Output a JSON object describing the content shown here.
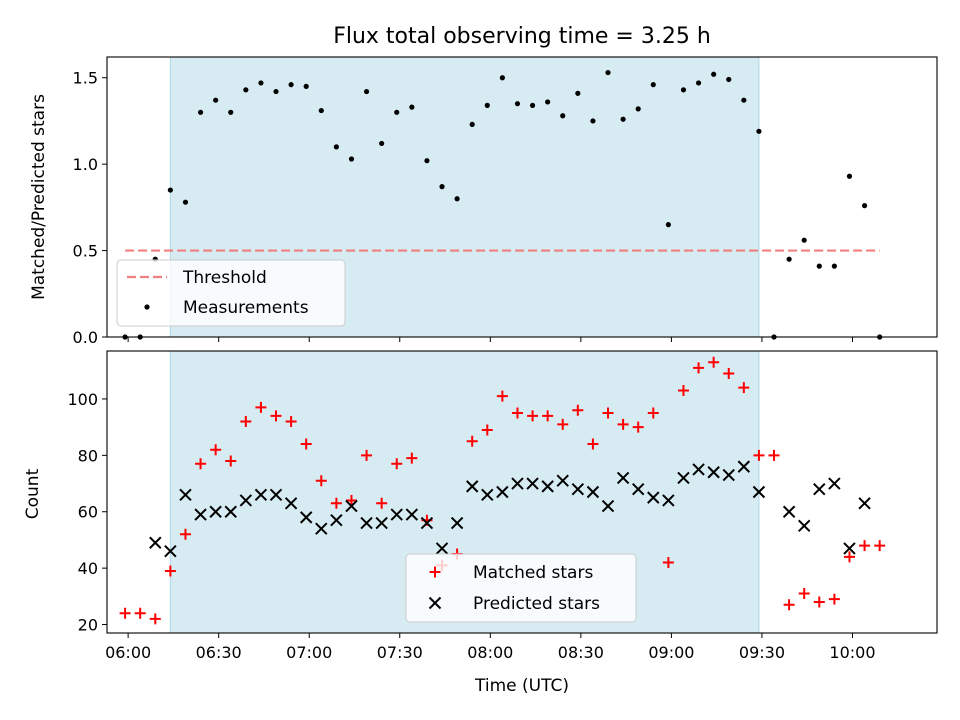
{
  "chart_data": [
    {
      "type": "scatter",
      "title": "Flux total observing time = 3.25 h",
      "xlabel": "",
      "ylabel": "Matched/Predicted stars",
      "ylim": [
        0,
        1.62
      ],
      "xlim": [
        "05:53",
        "10:28"
      ],
      "yticks": [
        "0.0",
        "0.5",
        "1.0",
        "1.5"
      ],
      "shaded_span": [
        "06:14",
        "09:29"
      ],
      "shade_color": "#add8e6",
      "threshold": {
        "name": "Threshold",
        "value": 0.5,
        "x_range": [
          "05:59",
          "10:09"
        ],
        "color": "#f08080"
      },
      "legend": {
        "placement": "lower-left",
        "entries": [
          "Threshold",
          "Measurements"
        ]
      },
      "series": [
        {
          "name": "Measurements",
          "color": "#000000",
          "marker": "dot",
          "points": [
            [
              "05:59",
              0.0
            ],
            [
              "06:04",
              0.0
            ],
            [
              "06:09",
              0.45
            ],
            [
              "06:14",
              0.85
            ],
            [
              "06:19",
              0.78
            ],
            [
              "06:24",
              1.3
            ],
            [
              "06:29",
              1.37
            ],
            [
              "06:34",
              1.3
            ],
            [
              "06:39",
              1.43
            ],
            [
              "06:44",
              1.47
            ],
            [
              "06:49",
              1.42
            ],
            [
              "06:54",
              1.46
            ],
            [
              "06:59",
              1.45
            ],
            [
              "07:04",
              1.31
            ],
            [
              "07:09",
              1.1
            ],
            [
              "07:14",
              1.03
            ],
            [
              "07:19",
              1.42
            ],
            [
              "07:24",
              1.12
            ],
            [
              "07:29",
              1.3
            ],
            [
              "07:34",
              1.33
            ],
            [
              "07:39",
              1.02
            ],
            [
              "07:44",
              0.87
            ],
            [
              "07:49",
              0.8
            ],
            [
              "07:54",
              1.23
            ],
            [
              "07:59",
              1.34
            ],
            [
              "08:04",
              1.5
            ],
            [
              "08:09",
              1.35
            ],
            [
              "08:14",
              1.34
            ],
            [
              "08:19",
              1.36
            ],
            [
              "08:24",
              1.28
            ],
            [
              "08:29",
              1.41
            ],
            [
              "08:34",
              1.25
            ],
            [
              "08:39",
              1.53
            ],
            [
              "08:44",
              1.26
            ],
            [
              "08:49",
              1.32
            ],
            [
              "08:54",
              1.46
            ],
            [
              "08:59",
              0.65
            ],
            [
              "09:04",
              1.43
            ],
            [
              "09:09",
              1.47
            ],
            [
              "09:14",
              1.52
            ],
            [
              "09:19",
              1.49
            ],
            [
              "09:24",
              1.37
            ],
            [
              "09:29",
              1.19
            ],
            [
              "09:34",
              0.0
            ],
            [
              "09:39",
              0.45
            ],
            [
              "09:44",
              0.56
            ],
            [
              "09:49",
              0.41
            ],
            [
              "09:54",
              0.41
            ],
            [
              "09:59",
              0.93
            ],
            [
              "10:04",
              0.76
            ],
            [
              "10:09",
              0.0
            ]
          ]
        }
      ]
    },
    {
      "type": "scatter",
      "xlabel": "Time (UTC)",
      "ylabel": "Count",
      "ylim": [
        17,
        117
      ],
      "xlim": [
        "05:53",
        "10:28"
      ],
      "yticks": [
        "20",
        "40",
        "60",
        "80",
        "100"
      ],
      "xticks": [
        "06:00",
        "06:30",
        "07:00",
        "07:30",
        "08:00",
        "08:30",
        "09:00",
        "09:30",
        "10:00"
      ],
      "shaded_span": [
        "06:14",
        "09:29"
      ],
      "shade_color": "#add8e6",
      "legend": {
        "placement": "lower-center",
        "entries": [
          "Matched stars",
          "Predicted stars"
        ]
      },
      "series": [
        {
          "name": "Matched stars",
          "color": "#ff0000",
          "marker": "plus",
          "points": [
            [
              "05:59",
              24
            ],
            [
              "06:04",
              24
            ],
            [
              "06:09",
              22
            ],
            [
              "06:14",
              39
            ],
            [
              "06:19",
              52
            ],
            [
              "06:24",
              77
            ],
            [
              "06:29",
              82
            ],
            [
              "06:34",
              78
            ],
            [
              "06:39",
              92
            ],
            [
              "06:44",
              97
            ],
            [
              "06:49",
              94
            ],
            [
              "06:54",
              92
            ],
            [
              "06:59",
              84
            ],
            [
              "07:04",
              71
            ],
            [
              "07:09",
              63
            ],
            [
              "07:14",
              64
            ],
            [
              "07:19",
              80
            ],
            [
              "07:24",
              63
            ],
            [
              "07:29",
              77
            ],
            [
              "07:34",
              79
            ],
            [
              "07:39",
              57
            ],
            [
              "07:44",
              41
            ],
            [
              "07:49",
              45
            ],
            [
              "07:54",
              85
            ],
            [
              "07:59",
              89
            ],
            [
              "08:04",
              101
            ],
            [
              "08:09",
              95
            ],
            [
              "08:14",
              94
            ],
            [
              "08:19",
              94
            ],
            [
              "08:24",
              91
            ],
            [
              "08:29",
              96
            ],
            [
              "08:34",
              84
            ],
            [
              "08:39",
              95
            ],
            [
              "08:44",
              91
            ],
            [
              "08:49",
              90
            ],
            [
              "08:54",
              95
            ],
            [
              "08:59",
              42
            ],
            [
              "09:04",
              103
            ],
            [
              "09:09",
              111
            ],
            [
              "09:14",
              113
            ],
            [
              "09:19",
              109
            ],
            [
              "09:24",
              104
            ],
            [
              "09:29",
              80
            ],
            [
              "09:34",
              80
            ],
            [
              "09:39",
              27
            ],
            [
              "09:44",
              31
            ],
            [
              "09:49",
              28
            ],
            [
              "09:54",
              29
            ],
            [
              "09:59",
              44
            ],
            [
              "10:04",
              48
            ],
            [
              "10:09",
              48
            ]
          ]
        },
        {
          "name": "Predicted stars",
          "color": "#000000",
          "marker": "x",
          "points": [
            [
              "06:09",
              49
            ],
            [
              "06:14",
              46
            ],
            [
              "06:19",
              66
            ],
            [
              "06:24",
              59
            ],
            [
              "06:29",
              60
            ],
            [
              "06:34",
              60
            ],
            [
              "06:39",
              64
            ],
            [
              "06:44",
              66
            ],
            [
              "06:49",
              66
            ],
            [
              "06:54",
              63
            ],
            [
              "06:59",
              58
            ],
            [
              "07:04",
              54
            ],
            [
              "07:09",
              57
            ],
            [
              "07:14",
              62
            ],
            [
              "07:19",
              56
            ],
            [
              "07:24",
              56
            ],
            [
              "07:29",
              59
            ],
            [
              "07:34",
              59
            ],
            [
              "07:39",
              56
            ],
            [
              "07:44",
              47
            ],
            [
              "07:49",
              56
            ],
            [
              "07:54",
              69
            ],
            [
              "07:59",
              66
            ],
            [
              "08:04",
              67
            ],
            [
              "08:09",
              70
            ],
            [
              "08:14",
              70
            ],
            [
              "08:19",
              69
            ],
            [
              "08:24",
              71
            ],
            [
              "08:29",
              68
            ],
            [
              "08:34",
              67
            ],
            [
              "08:39",
              62
            ],
            [
              "08:44",
              72
            ],
            [
              "08:49",
              68
            ],
            [
              "08:54",
              65
            ],
            [
              "08:59",
              64
            ],
            [
              "09:04",
              72
            ],
            [
              "09:09",
              75
            ],
            [
              "09:14",
              74
            ],
            [
              "09:19",
              73
            ],
            [
              "09:24",
              76
            ],
            [
              "09:29",
              67
            ],
            [
              "09:39",
              60
            ],
            [
              "09:44",
              55
            ],
            [
              "09:49",
              68
            ],
            [
              "09:54",
              70
            ],
            [
              "09:59",
              47
            ],
            [
              "10:04",
              63
            ]
          ]
        }
      ]
    }
  ]
}
